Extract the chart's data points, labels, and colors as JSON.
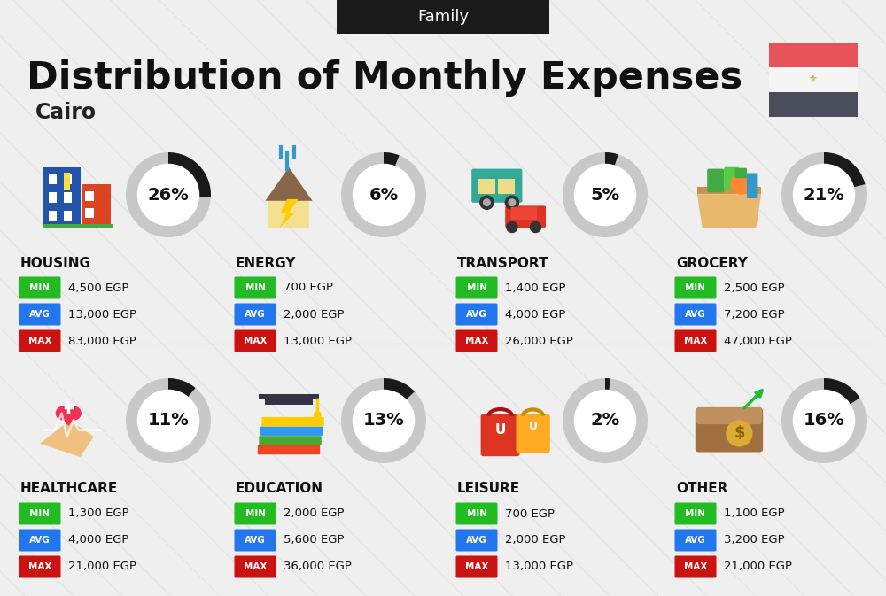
{
  "title": "Distribution of Monthly Expenses",
  "subtitle": "Cairo",
  "family_label": "Family",
  "bg_color": "#efefef",
  "header_bg": "#1a1a1a",
  "header_text_color": "#ffffff",
  "title_color": "#111111",
  "subtitle_color": "#222222",
  "flag_red": "#e8535b",
  "flag_white": "#ffffff",
  "flag_dark": "#4a4e5a",
  "categories": [
    {
      "name": "HOUSING",
      "pct": 26,
      "min_val": "4,500 EGP",
      "avg_val": "13,000 EGP",
      "max_val": "83,000 EGP",
      "col": 0,
      "row": 0
    },
    {
      "name": "ENERGY",
      "pct": 6,
      "min_val": "700 EGP",
      "avg_val": "2,000 EGP",
      "max_val": "13,000 EGP",
      "col": 1,
      "row": 0
    },
    {
      "name": "TRANSPORT",
      "pct": 5,
      "min_val": "1,400 EGP",
      "avg_val": "4,000 EGP",
      "max_val": "26,000 EGP",
      "col": 2,
      "row": 0
    },
    {
      "name": "GROCERY",
      "pct": 21,
      "min_val": "2,500 EGP",
      "avg_val": "7,200 EGP",
      "max_val": "47,000 EGP",
      "col": 3,
      "row": 0
    },
    {
      "name": "HEALTHCARE",
      "pct": 11,
      "min_val": "1,300 EGP",
      "avg_val": "4,000 EGP",
      "max_val": "21,000 EGP",
      "col": 0,
      "row": 1
    },
    {
      "name": "EDUCATION",
      "pct": 13,
      "min_val": "2,000 EGP",
      "avg_val": "5,600 EGP",
      "max_val": "36,000 EGP",
      "col": 1,
      "row": 1
    },
    {
      "name": "LEISURE",
      "pct": 2,
      "min_val": "700 EGP",
      "avg_val": "2,000 EGP",
      "max_val": "13,000 EGP",
      "col": 2,
      "row": 1
    },
    {
      "name": "OTHER",
      "pct": 16,
      "min_val": "1,100 EGP",
      "avg_val": "3,200 EGP",
      "max_val": "21,000 EGP",
      "col": 3,
      "row": 1
    }
  ],
  "min_color": "#22bb22",
  "avg_color": "#2277ee",
  "max_color": "#cc1111",
  "ring_filled": "#1a1a1a",
  "ring_empty": "#c8c8c8",
  "value_color": "#111111",
  "diag_color": "#d8d8d8"
}
